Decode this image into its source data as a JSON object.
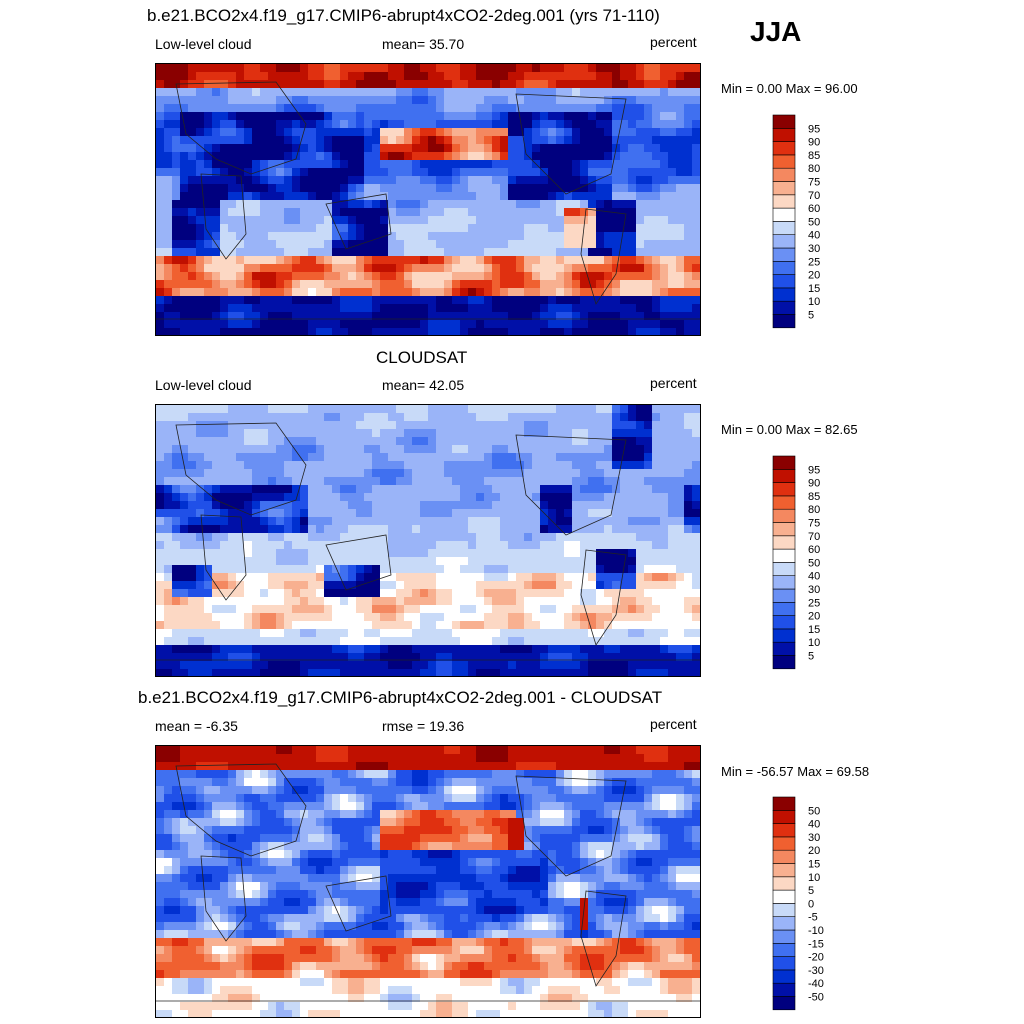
{
  "season": "JJA",
  "panels": [
    {
      "title": "b.e21.BCO2x4.f19_g17.CMIP6-abrupt4xCO2-2deg.001 (yrs 71-110)",
      "left_label": "Low-level cloud",
      "center_label": "mean=  35.70",
      "units": "percent",
      "minmax": "Min =   0.00 Max =  96.00"
    },
    {
      "title": "CLOUDSAT",
      "left_label": "Low-level cloud",
      "center_label": "mean=  42.05",
      "units": "percent",
      "minmax": "Min =   0.00 Max =  82.65"
    },
    {
      "title": "b.e21.BCO2x4.f19_g17.CMIP6-abrupt4xCO2-2deg.001 - CLOUDSAT",
      "left_label": "mean =  -6.35",
      "center_label": "rmse =  19.36",
      "units": "percent",
      "minmax": "Min = -56.57 Max =  69.58"
    }
  ],
  "chart_data": [
    {
      "type": "heatmap",
      "title": "b.e21.BCO2x4.f19_g17.CMIP6-abrupt4xCO2-2deg.001 (yrs 71-110)",
      "variable": "Low-level cloud",
      "units": "percent",
      "mean": 35.7,
      "min": 0.0,
      "max": 96.0,
      "colorbar_levels": [
        5,
        10,
        15,
        20,
        25,
        30,
        40,
        50,
        60,
        70,
        75,
        80,
        85,
        90,
        95
      ],
      "colorbar_colors": [
        "#00007f",
        "#0010a8",
        "#0030d0",
        "#2050e8",
        "#4070f0",
        "#6a90f4",
        "#9ab4f8",
        "#c8daf8",
        "#ffffff",
        "#fcd8c4",
        "#f8b090",
        "#f48860",
        "#f06030",
        "#e03010",
        "#c01000",
        "#8a0000"
      ]
    },
    {
      "type": "heatmap",
      "title": "CLOUDSAT",
      "variable": "Low-level cloud",
      "units": "percent",
      "mean": 42.05,
      "min": 0.0,
      "max": 82.65,
      "colorbar_levels": [
        5,
        10,
        15,
        20,
        25,
        30,
        40,
        50,
        60,
        70,
        75,
        80,
        85,
        90,
        95
      ],
      "colorbar_colors": [
        "#00007f",
        "#0010a8",
        "#0030d0",
        "#2050e8",
        "#4070f0",
        "#6a90f4",
        "#9ab4f8",
        "#c8daf8",
        "#ffffff",
        "#fcd8c4",
        "#f8b090",
        "#f48860",
        "#f06030",
        "#e03010",
        "#c01000",
        "#8a0000"
      ]
    },
    {
      "type": "heatmap",
      "title": "b.e21.BCO2x4.f19_g17.CMIP6-abrupt4xCO2-2deg.001 - CLOUDSAT",
      "variable": "",
      "units": "percent",
      "mean": -6.35,
      "rmse": 19.36,
      "min": -56.57,
      "max": 69.58,
      "colorbar_levels": [
        -50,
        -40,
        -30,
        -20,
        -15,
        -10,
        -5,
        0,
        5,
        10,
        15,
        20,
        30,
        40,
        50
      ],
      "colorbar_colors": [
        "#00007f",
        "#0010a8",
        "#0030d0",
        "#2050e8",
        "#4070f0",
        "#6a90f4",
        "#9ab4f8",
        "#c8daf8",
        "#ffffff",
        "#fcd8c4",
        "#f8b090",
        "#f48860",
        "#f06030",
        "#e03010",
        "#c01000",
        "#8a0000"
      ]
    }
  ]
}
